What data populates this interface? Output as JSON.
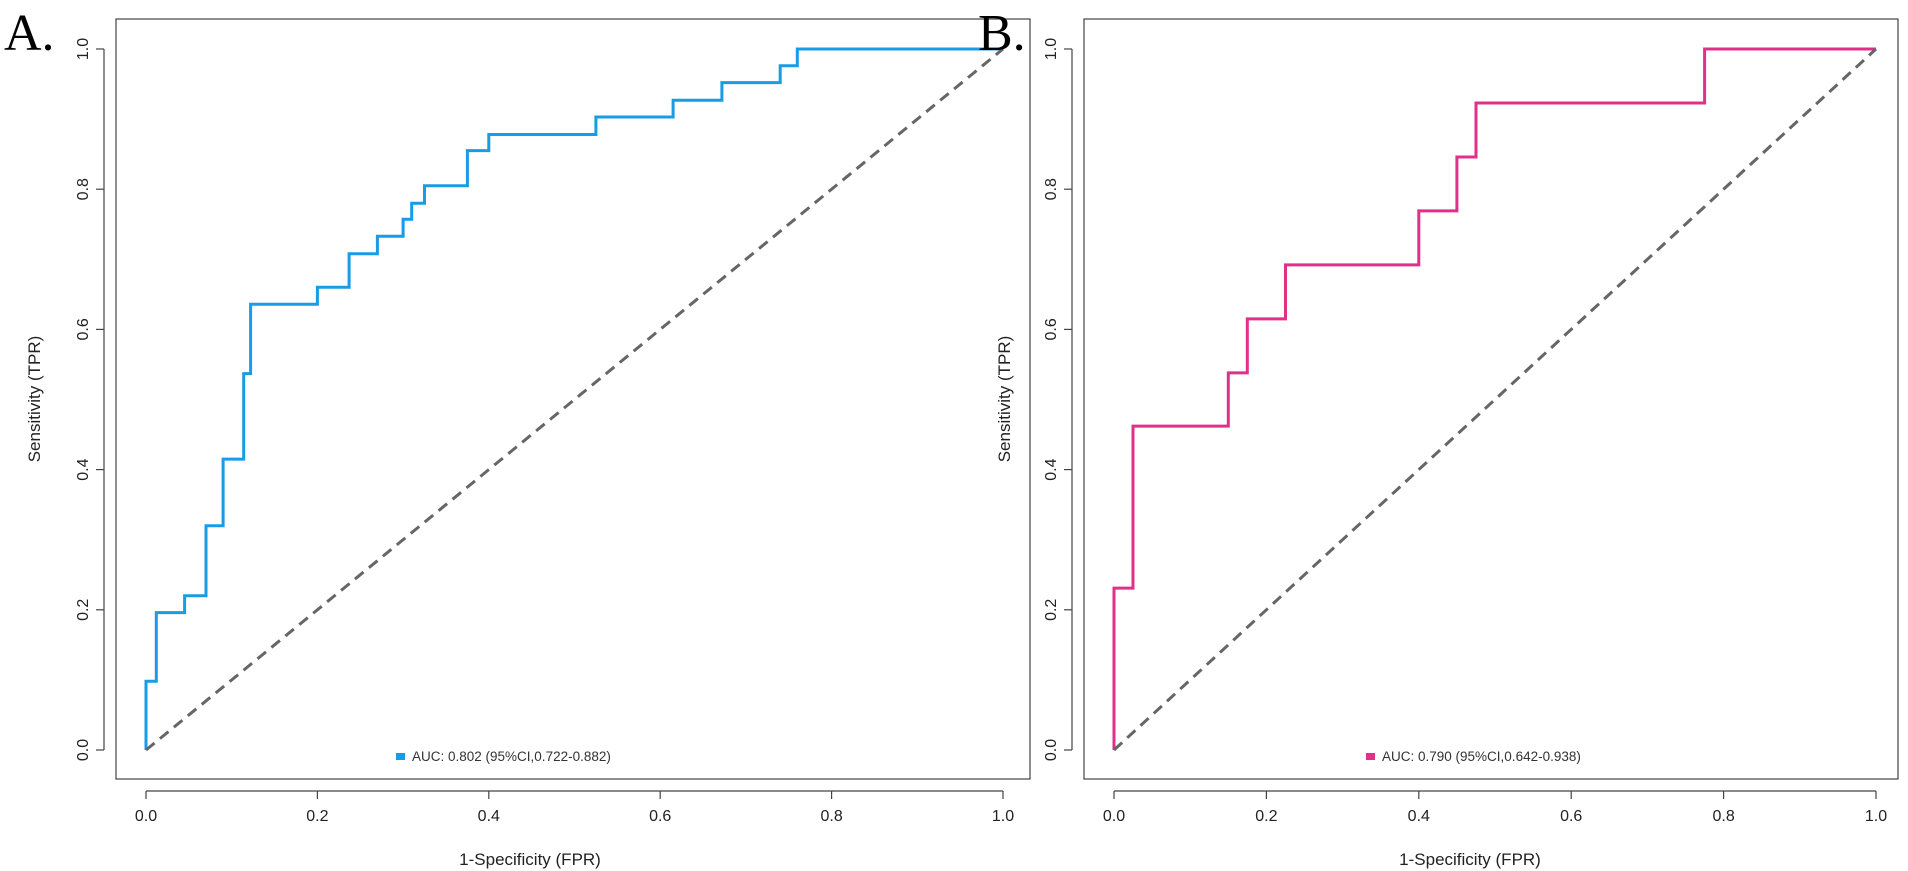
{
  "chart_data": [
    {
      "type": "line",
      "panel_label": "A.",
      "xlabel": "1-Specificity (FPR)",
      "ylabel": "Sensitivity (TPR)",
      "xlim": [
        0,
        1
      ],
      "ylim": [
        0,
        1
      ],
      "x_ticks": [
        "0.0",
        "0.2",
        "0.4",
        "0.6",
        "0.8",
        "1.0"
      ],
      "y_ticks": [
        "0.0",
        "0.2",
        "0.4",
        "0.6",
        "0.8",
        "1.0"
      ],
      "legend": {
        "text": "AUC: 0.802 (95%CI,0.722-0.882)",
        "color": "#1a9be6",
        "placement": "bottom-center"
      },
      "series": [
        {
          "name": "ROC",
          "color": "#1a9be6",
          "x": [
            0.0,
            0.0,
            0.012,
            0.012,
            0.045,
            0.045,
            0.07,
            0.07,
            0.09,
            0.09,
            0.114,
            0.114,
            0.122,
            0.122,
            0.2,
            0.2,
            0.237,
            0.237,
            0.27,
            0.27,
            0.3,
            0.3,
            0.31,
            0.31,
            0.325,
            0.325,
            0.375,
            0.375,
            0.4,
            0.4,
            0.525,
            0.525,
            0.615,
            0.615,
            0.672,
            0.672,
            0.74,
            0.74,
            0.76,
            0.76,
            1.0
          ],
          "y": [
            0.0,
            0.098,
            0.098,
            0.196,
            0.196,
            0.22,
            0.22,
            0.32,
            0.32,
            0.415,
            0.415,
            0.537,
            0.537,
            0.636,
            0.636,
            0.66,
            0.66,
            0.708,
            0.708,
            0.733,
            0.733,
            0.757,
            0.757,
            0.78,
            0.78,
            0.805,
            0.805,
            0.855,
            0.855,
            0.878,
            0.878,
            0.903,
            0.903,
            0.927,
            0.927,
            0.952,
            0.952,
            0.976,
            0.976,
            1.0,
            1.0
          ]
        },
        {
          "name": "Reference",
          "color": "#666666",
          "style": "dashed",
          "x": [
            0,
            1
          ],
          "y": [
            0,
            1
          ]
        }
      ]
    },
    {
      "type": "line",
      "panel_label": "B.",
      "xlabel": "1-Specificity (FPR)",
      "ylabel": "Sensitivity (TPR)",
      "xlim": [
        0,
        1
      ],
      "ylim": [
        0,
        1
      ],
      "x_ticks": [
        "0.0",
        "0.2",
        "0.4",
        "0.6",
        "0.8",
        "1.0"
      ],
      "y_ticks": [
        "0.0",
        "0.2",
        "0.4",
        "0.6",
        "0.8",
        "1.0"
      ],
      "legend": {
        "text": "AUC: 0.790 (95%CI,0.642-0.938)",
        "color": "#e0308a",
        "placement": "bottom-center"
      },
      "series": [
        {
          "name": "ROC",
          "color": "#e0308a",
          "x": [
            0.0,
            0.0,
            0.025,
            0.025,
            0.15,
            0.15,
            0.175,
            0.175,
            0.225,
            0.225,
            0.4,
            0.4,
            0.45,
            0.45,
            0.475,
            0.475,
            0.775,
            0.775,
            1.0
          ],
          "y": [
            0.0,
            0.231,
            0.231,
            0.462,
            0.462,
            0.538,
            0.538,
            0.615,
            0.615,
            0.692,
            0.692,
            0.769,
            0.769,
            0.846,
            0.846,
            0.923,
            0.923,
            1.0,
            1.0
          ]
        },
        {
          "name": "Reference",
          "color": "#666666",
          "style": "dashed",
          "x": [
            0,
            1
          ],
          "y": [
            0,
            1
          ]
        }
      ]
    }
  ]
}
